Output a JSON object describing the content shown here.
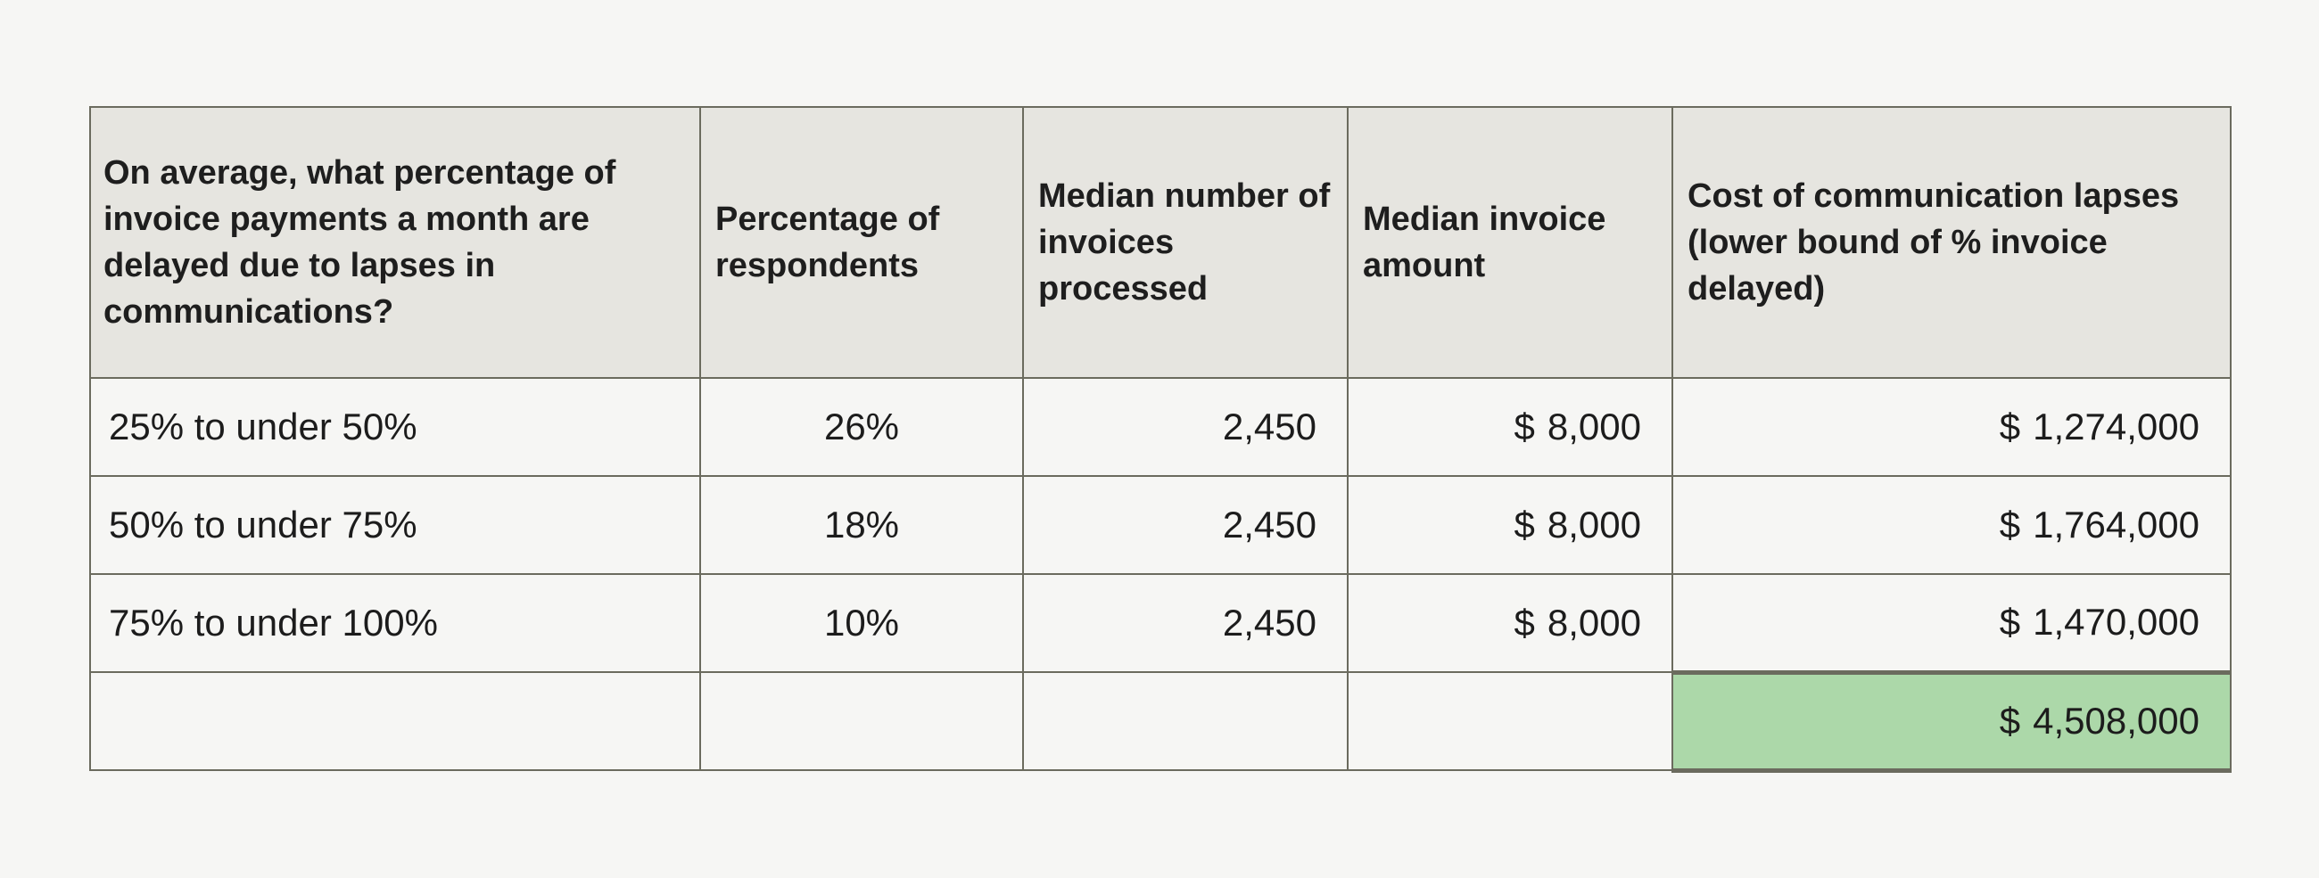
{
  "table": {
    "headers": [
      "On average, what percentage of invoice payments a month are delayed due to lapses in communications?",
      "Percentage of respondents",
      "Median number of invoices processed",
      "Median invoice amount",
      "Cost of communication lapses (lower bound of % invoice delayed)"
    ],
    "rows": [
      {
        "range": "25% to under 50%",
        "percent": "26%",
        "invoices": "2,450",
        "amount_symbol": "$",
        "amount": "8,000",
        "cost_symbol": "$",
        "cost": "1,274,000"
      },
      {
        "range": "50% to under 75%",
        "percent": "18%",
        "invoices": "2,450",
        "amount_symbol": "$",
        "amount": "8,000",
        "cost_symbol": "$",
        "cost": "1,764,000"
      },
      {
        "range": "75% to under 100%",
        "percent": "10%",
        "invoices": "2,450",
        "amount_symbol": "$",
        "amount": "8,000",
        "cost_symbol": "$",
        "cost": "1,470,000"
      }
    ],
    "total": {
      "symbol": "$",
      "value": "4,508,000"
    },
    "colors": {
      "header_bg": "#e6e5e0",
      "border": "#6b6b5e",
      "total_bg": "#acd8a9",
      "page_bg": "#f6f6f4"
    }
  }
}
